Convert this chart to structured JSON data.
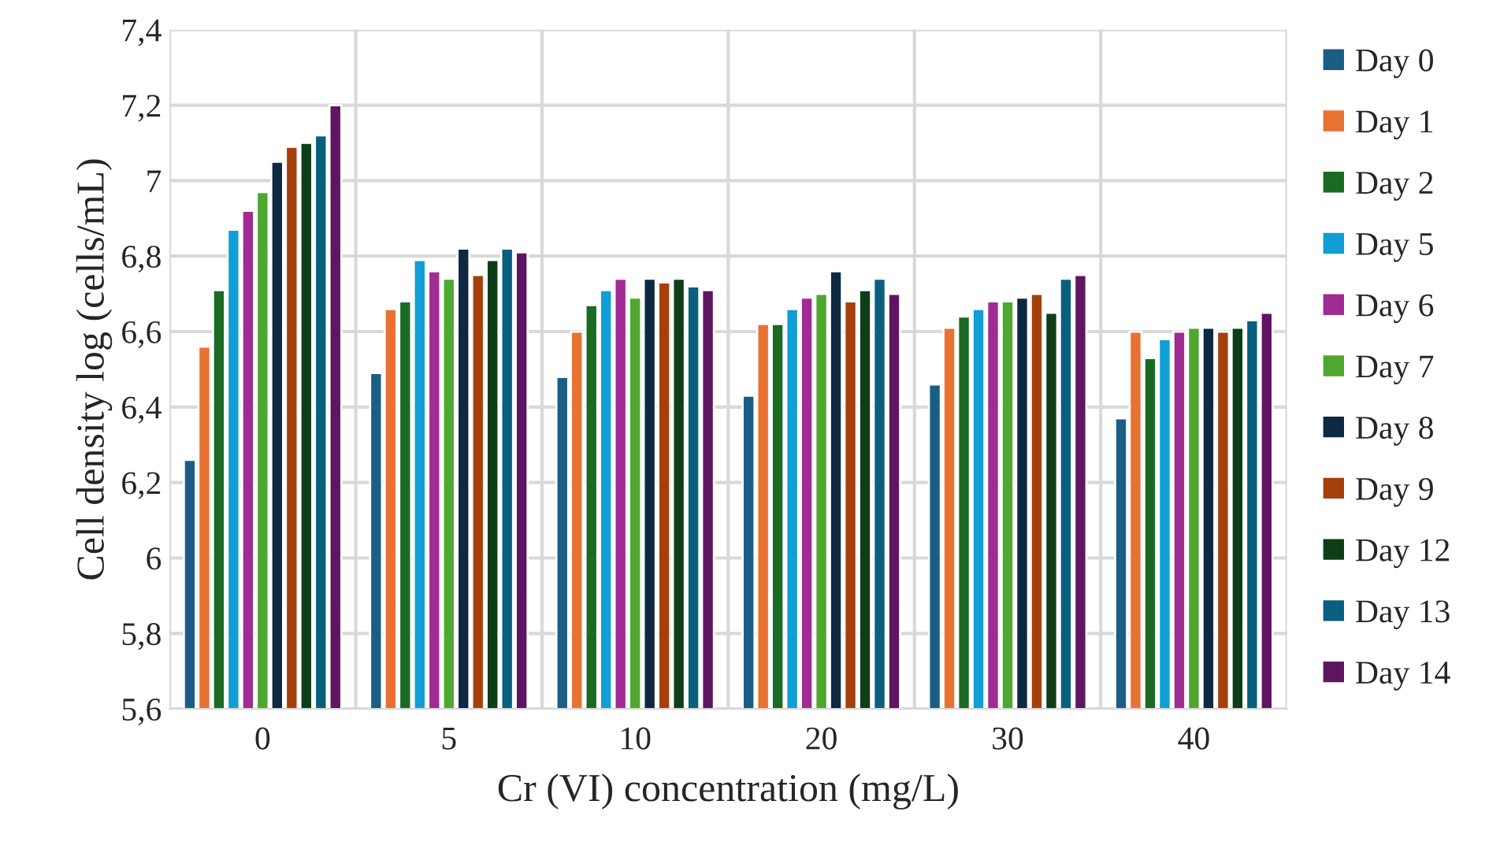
{
  "chart_data": {
    "type": "bar",
    "xlabel": "Cr (VI) concentration (mg/L)",
    "ylabel": "Cell density log (cells/mL)",
    "categories": [
      "0",
      "5",
      "10",
      "20",
      "30",
      "40"
    ],
    "series": [
      {
        "name": "Day 0",
        "color": "#1b5e85",
        "values": [
          6.26,
          6.49,
          6.48,
          6.43,
          6.46,
          6.37
        ]
      },
      {
        "name": "Day 1",
        "color": "#e97132",
        "values": [
          6.56,
          6.66,
          6.6,
          6.62,
          6.61,
          6.6
        ]
      },
      {
        "name": "Day 2",
        "color": "#196b24",
        "values": [
          6.71,
          6.68,
          6.67,
          6.62,
          6.64,
          6.53
        ]
      },
      {
        "name": "Day 5",
        "color": "#0f9ed5",
        "values": [
          6.87,
          6.79,
          6.71,
          6.66,
          6.66,
          6.58
        ]
      },
      {
        "name": "Day 6",
        "color": "#a02b93",
        "values": [
          6.92,
          6.76,
          6.74,
          6.69,
          6.68,
          6.6
        ]
      },
      {
        "name": "Day 7",
        "color": "#4ea72e",
        "values": [
          6.97,
          6.74,
          6.69,
          6.7,
          6.68,
          6.61
        ]
      },
      {
        "name": "Day 8",
        "color": "#0e2841",
        "values": [
          7.05,
          6.82,
          6.74,
          6.76,
          6.69,
          6.61
        ]
      },
      {
        "name": "Day 9",
        "color": "#a5400d",
        "values": [
          7.09,
          6.75,
          6.73,
          6.68,
          6.7,
          6.6
        ]
      },
      {
        "name": "Day 12",
        "color": "#0e3e17",
        "values": [
          7.1,
          6.79,
          6.74,
          6.71,
          6.65,
          6.61
        ]
      },
      {
        "name": "Day 13",
        "color": "#095f7e",
        "values": [
          7.12,
          6.82,
          6.72,
          6.74,
          6.74,
          6.63
        ]
      },
      {
        "name": "Day 14",
        "color": "#5f1561",
        "values": [
          7.2,
          6.81,
          6.71,
          6.7,
          6.75,
          6.65
        ]
      }
    ],
    "ylim": [
      5.6,
      7.4
    ],
    "yticks": [
      {
        "value": 5.6,
        "label": "5,6"
      },
      {
        "value": 5.8,
        "label": "5,8"
      },
      {
        "value": 6.0,
        "label": "6"
      },
      {
        "value": 6.2,
        "label": "6,2"
      },
      {
        "value": 6.4,
        "label": "6,4"
      },
      {
        "value": 6.6,
        "label": "6,6"
      },
      {
        "value": 6.8,
        "label": "6,8"
      },
      {
        "value": 7.0,
        "label": "7"
      },
      {
        "value": 7.2,
        "label": "7,2"
      },
      {
        "value": 7.4,
        "label": "7,4"
      }
    ],
    "grid": true,
    "legend": "right"
  }
}
